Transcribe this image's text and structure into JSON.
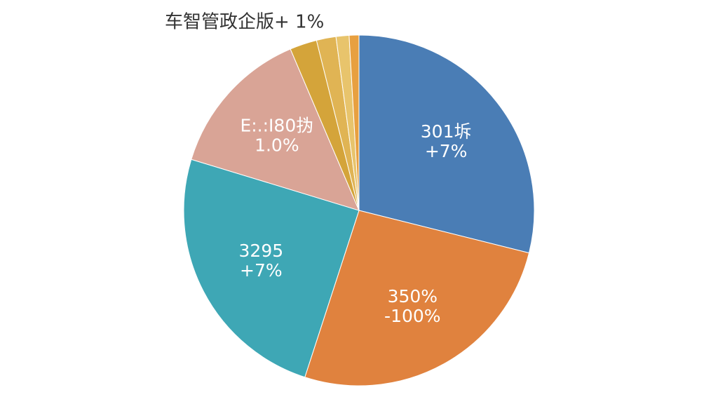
{
  "chart_data": {
    "type": "pie",
    "title": "车智管政企版+ 1%",
    "values": [
      28.9,
      26.1,
      24.7,
      13.9,
      2.5,
      1.8,
      1.2,
      0.9
    ],
    "colors": [
      "#4a7db5",
      "#e0823e",
      "#3ea7b5",
      "#d9a496",
      "#d4a43a",
      "#e0b454",
      "#e8c46c",
      "#e8a040"
    ],
    "slice_labels": [
      [
        "301坼",
        "+7%"
      ],
      [
        "350%",
        "-100%"
      ],
      [
        "3295",
        "+7%"
      ],
      [
        "E:.:I80㧑",
        "1.0%"
      ],
      null,
      null,
      null,
      null
    ]
  }
}
